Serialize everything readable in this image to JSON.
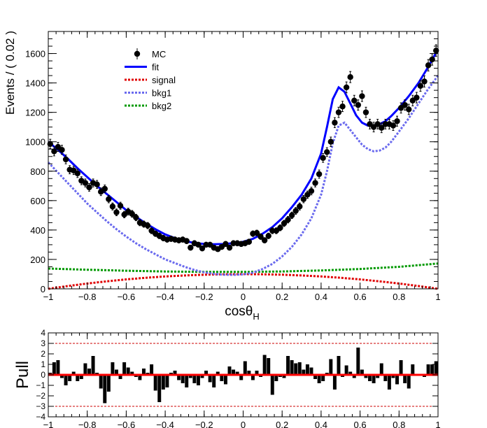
{
  "chart_data": [
    {
      "type": "scatter",
      "panel": "main",
      "xlabel": "cosθ",
      "xlabel_subscript": "H",
      "ylabel": "Events / ( 0.02 )",
      "xlim": [
        -1,
        1
      ],
      "ylim": [
        0,
        1750
      ],
      "x_ticks": [
        "−1",
        "−0.8",
        "−0.6",
        "−0.4",
        "−0.2",
        "0",
        "0.2",
        "0.4",
        "0.6",
        "0.8",
        "1"
      ],
      "y_ticks": [
        "0",
        "200",
        "400",
        "600",
        "800",
        "1000",
        "1200",
        "1400",
        "1600"
      ],
      "legend_position": "top-left",
      "legend": [
        {
          "label": "MC",
          "style": "marker",
          "color": "#000000"
        },
        {
          "label": "fit",
          "style": "solid",
          "color": "#0000ff"
        },
        {
          "label": "signal",
          "style": "dotted",
          "color": "#e00000"
        },
        {
          "label": "bkg1",
          "style": "dotted",
          "color": "#6a6aee"
        },
        {
          "label": "bkg2",
          "style": "dotted",
          "color": "#009900"
        }
      ],
      "series": [
        {
          "name": "MC",
          "kind": "points",
          "x": [
            -0.99,
            -0.97,
            -0.95,
            -0.93,
            -0.91,
            -0.89,
            -0.87,
            -0.85,
            -0.83,
            -0.81,
            -0.79,
            -0.77,
            -0.75,
            -0.73,
            -0.71,
            -0.69,
            -0.67,
            -0.65,
            -0.63,
            -0.61,
            -0.59,
            -0.57,
            -0.55,
            -0.53,
            -0.51,
            -0.49,
            -0.47,
            -0.45,
            -0.43,
            -0.41,
            -0.39,
            -0.37,
            -0.35,
            -0.33,
            -0.31,
            -0.29,
            -0.27,
            -0.25,
            -0.23,
            -0.21,
            -0.19,
            -0.17,
            -0.15,
            -0.13,
            -0.11,
            -0.09,
            -0.07,
            -0.05,
            -0.03,
            -0.01,
            0.01,
            0.03,
            0.05,
            0.07,
            0.09,
            0.11,
            0.13,
            0.15,
            0.17,
            0.19,
            0.21,
            0.23,
            0.25,
            0.27,
            0.29,
            0.31,
            0.33,
            0.35,
            0.37,
            0.39,
            0.41,
            0.43,
            0.45,
            0.47,
            0.49,
            0.51,
            0.53,
            0.55,
            0.57,
            0.59,
            0.61,
            0.63,
            0.65,
            0.67,
            0.69,
            0.71,
            0.73,
            0.75,
            0.77,
            0.79,
            0.81,
            0.83,
            0.85,
            0.87,
            0.89,
            0.91,
            0.93,
            0.95,
            0.97,
            0.99
          ],
          "y": [
            985,
            935,
            965,
            945,
            880,
            810,
            805,
            785,
            735,
            720,
            690,
            720,
            710,
            660,
            680,
            610,
            560,
            520,
            565,
            505,
            525,
            510,
            485,
            450,
            440,
            430,
            395,
            375,
            360,
            345,
            335,
            340,
            335,
            330,
            335,
            325,
            280,
            310,
            300,
            275,
            300,
            300,
            280,
            270,
            285,
            305,
            280,
            310,
            310,
            305,
            310,
            320,
            375,
            380,
            355,
            330,
            360,
            395,
            395,
            415,
            445,
            470,
            500,
            530,
            560,
            610,
            640,
            665,
            720,
            780,
            890,
            930,
            1000,
            1130,
            1200,
            1240,
            1370,
            1440,
            1280,
            1250,
            1310,
            1200,
            1120,
            1100,
            1120,
            1095,
            1120,
            1120,
            1110,
            1140,
            1230,
            1250,
            1220,
            1280,
            1300,
            1380,
            1410,
            1520,
            1560,
            1620
          ],
          "err": [
            32,
            31,
            31,
            31,
            30,
            28,
            28,
            28,
            27,
            27,
            26,
            27,
            27,
            26,
            26,
            25,
            24,
            23,
            24,
            22,
            23,
            23,
            22,
            21,
            21,
            21,
            20,
            19,
            19,
            19,
            18,
            18,
            18,
            18,
            18,
            18,
            17,
            18,
            17,
            17,
            17,
            17,
            17,
            16,
            17,
            17,
            17,
            18,
            18,
            17,
            18,
            18,
            19,
            19,
            19,
            18,
            19,
            20,
            20,
            20,
            21,
            22,
            22,
            23,
            24,
            25,
            25,
            26,
            27,
            28,
            30,
            30,
            32,
            34,
            35,
            35,
            37,
            38,
            36,
            35,
            36,
            35,
            33,
            33,
            33,
            33,
            33,
            33,
            33,
            34,
            35,
            35,
            35,
            36,
            36,
            37,
            38,
            39,
            39,
            40
          ],
          "color": "#000000"
        },
        {
          "name": "fit",
          "kind": "line",
          "x": [
            -1,
            -0.95,
            -0.9,
            -0.85,
            -0.8,
            -0.75,
            -0.7,
            -0.65,
            -0.6,
            -0.55,
            -0.5,
            -0.45,
            -0.4,
            -0.35,
            -0.3,
            -0.25,
            -0.2,
            -0.15,
            -0.1,
            -0.05,
            0,
            0.05,
            0.1,
            0.15,
            0.2,
            0.25,
            0.3,
            0.35,
            0.4,
            0.43,
            0.46,
            0.49,
            0.52,
            0.55,
            0.58,
            0.61,
            0.64,
            0.67,
            0.7,
            0.73,
            0.76,
            0.8,
            0.85,
            0.9,
            0.95,
            1
          ],
          "y": [
            1000,
            945,
            885,
            820,
            760,
            700,
            645,
            590,
            535,
            490,
            445,
            405,
            370,
            345,
            325,
            312,
            305,
            303,
            305,
            310,
            320,
            340,
            375,
            420,
            480,
            555,
            640,
            750,
            920,
            1100,
            1290,
            1370,
            1340,
            1260,
            1180,
            1130,
            1110,
            1110,
            1120,
            1140,
            1175,
            1230,
            1310,
            1400,
            1510,
            1630
          ],
          "color": "#0000ff"
        },
        {
          "name": "signal",
          "kind": "line",
          "x": [
            -1,
            -0.9,
            -0.8,
            -0.7,
            -0.6,
            -0.5,
            -0.4,
            -0.3,
            -0.2,
            -0.1,
            0,
            0.1,
            0.2,
            0.3,
            0.4,
            0.5,
            0.6,
            0.7,
            0.8,
            0.9,
            1
          ],
          "y": [
            0,
            19,
            36,
            51,
            64,
            75,
            84,
            91,
            96,
            99,
            100,
            99,
            96,
            91,
            84,
            75,
            64,
            51,
            36,
            19,
            0
          ],
          "color": "#e00000"
        },
        {
          "name": "bkg1",
          "kind": "line",
          "x": [
            -1,
            -0.95,
            -0.9,
            -0.85,
            -0.8,
            -0.75,
            -0.7,
            -0.65,
            -0.6,
            -0.55,
            -0.5,
            -0.45,
            -0.4,
            -0.35,
            -0.3,
            -0.25,
            -0.2,
            -0.15,
            -0.1,
            -0.05,
            0,
            0.05,
            0.1,
            0.15,
            0.2,
            0.25,
            0.3,
            0.35,
            0.4,
            0.43,
            0.46,
            0.49,
            0.52,
            0.55,
            0.58,
            0.61,
            0.64,
            0.67,
            0.7,
            0.73,
            0.76,
            0.8,
            0.85,
            0.9,
            0.95,
            1
          ],
          "y": [
            860,
            790,
            720,
            650,
            580,
            520,
            460,
            405,
            355,
            310,
            270,
            235,
            200,
            175,
            150,
            128,
            112,
            102,
            96,
            95,
            98,
            110,
            135,
            170,
            220,
            285,
            370,
            480,
            640,
            800,
            990,
            1110,
            1130,
            1080,
            1030,
            980,
            950,
            935,
            940,
            960,
            1000,
            1070,
            1160,
            1260,
            1360,
            1450
          ],
          "color": "#6a6aee"
        },
        {
          "name": "bkg2",
          "kind": "line",
          "x": [
            -1,
            -0.8,
            -0.6,
            -0.4,
            -0.2,
            0,
            0.2,
            0.4,
            0.6,
            0.8,
            1
          ],
          "y": [
            138,
            130,
            123,
            118,
            115,
            115,
            118,
            125,
            135,
            150,
            172
          ],
          "color": "#009900"
        }
      ]
    },
    {
      "type": "bar",
      "panel": "pull",
      "ylabel": "Pull",
      "xlim": [
        -1,
        1
      ],
      "ylim": [
        -4,
        4
      ],
      "x_ticks": [
        "−1",
        "−0.8",
        "−0.6",
        "−0.4",
        "−0.2",
        "0",
        "0.2",
        "0.4",
        "0.6",
        "0.8",
        "1"
      ],
      "y_ticks": [
        "−4",
        "−3",
        "−2",
        "−1",
        "0",
        "1",
        "2",
        "3",
        "4"
      ],
      "reference_lines": [
        -3,
        0,
        3
      ],
      "x": [
        -0.99,
        -0.97,
        -0.95,
        -0.93,
        -0.91,
        -0.89,
        -0.87,
        -0.85,
        -0.83,
        -0.81,
        -0.79,
        -0.77,
        -0.75,
        -0.73,
        -0.71,
        -0.69,
        -0.67,
        -0.65,
        -0.63,
        -0.61,
        -0.59,
        -0.57,
        -0.55,
        -0.53,
        -0.51,
        -0.49,
        -0.47,
        -0.45,
        -0.43,
        -0.41,
        -0.39,
        -0.37,
        -0.35,
        -0.33,
        -0.31,
        -0.29,
        -0.27,
        -0.25,
        -0.23,
        -0.21,
        -0.19,
        -0.17,
        -0.15,
        -0.13,
        -0.11,
        -0.09,
        -0.07,
        -0.05,
        -0.03,
        -0.01,
        0.01,
        0.03,
        0.05,
        0.07,
        0.09,
        0.11,
        0.13,
        0.15,
        0.17,
        0.19,
        0.21,
        0.23,
        0.25,
        0.27,
        0.29,
        0.31,
        0.33,
        0.35,
        0.37,
        0.39,
        0.41,
        0.43,
        0.45,
        0.47,
        0.49,
        0.51,
        0.53,
        0.55,
        0.57,
        0.59,
        0.61,
        0.63,
        0.65,
        0.67,
        0.69,
        0.71,
        0.73,
        0.75,
        0.77,
        0.79,
        0.81,
        0.83,
        0.85,
        0.87,
        0.89,
        0.91,
        0.93,
        0.95,
        0.97,
        0.99
      ],
      "pull": [
        0.2,
        1.2,
        1.4,
        -0.3,
        -1.0,
        -0.6,
        0.3,
        -0.6,
        -0.4,
        1.1,
        0.6,
        1.8,
        0.2,
        -1.3,
        -2.7,
        -1.6,
        1.2,
        0.5,
        -0.4,
        1.2,
        0.7,
        0.3,
        -0.2,
        -0.5,
        0.6,
        0.2,
        1.0,
        -1.5,
        -2.6,
        -1.4,
        -1.2,
        0.2,
        0.4,
        -0.5,
        -0.8,
        -1.2,
        -0.3,
        -0.8,
        -1.0,
        -0.3,
        0.4,
        -0.7,
        -1.2,
        0.3,
        -0.6,
        -0.9,
        0.8,
        0.5,
        0.3,
        -0.5,
        1.3,
        0.4,
        -0.5,
        0.4,
        -0.2,
        1.9,
        1.6,
        -1.9,
        -0.6,
        -0.2,
        -0.3,
        1.8,
        1.4,
        1.1,
        1.2,
        0.5,
        1.0,
        0.7,
        -0.4,
        -0.8,
        -0.6,
        0.2,
        1.5,
        -1.4,
        1.8,
        -0.2,
        0.9,
        0.3,
        -0.3,
        2.6,
        0.5,
        -0.3,
        -0.6,
        -0.8,
        -0.3,
        1.1,
        -0.6,
        -1.4,
        -0.3,
        -0.9,
        1.4,
        -0.8,
        -1.3,
        1.0,
        -0.1,
        -0.1,
        -0.2,
        1.0,
        1.0,
        1.3
      ]
    }
  ]
}
